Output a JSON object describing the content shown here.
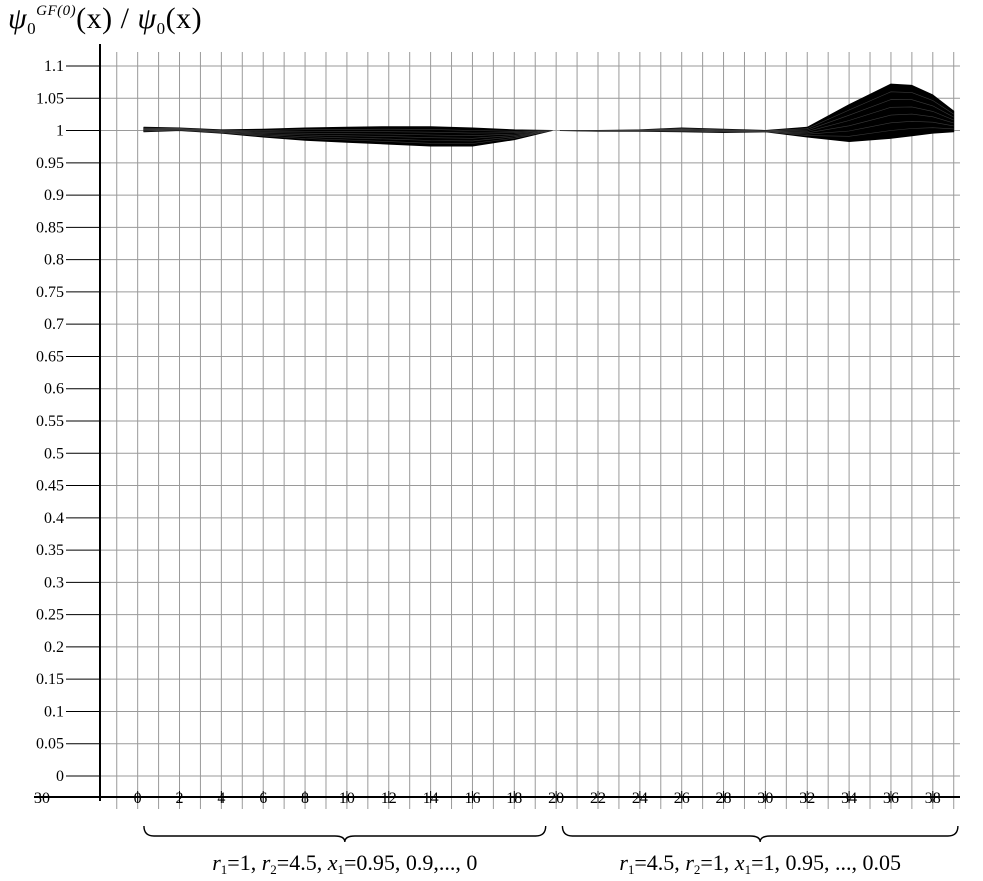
{
  "chart_data": {
    "type": "area",
    "ylabel": {
      "psi": "ψ",
      "psi_sub": "0",
      "sup": "GF(0)",
      "arg": "(x)",
      "slash": " / ",
      "arg2": "(x)"
    },
    "xlabel": "",
    "xlim": [
      -1.8,
      39.3
    ],
    "ylim": [
      0,
      1.15
    ],
    "x_ticks": [
      0,
      2,
      4,
      6,
      8,
      10,
      12,
      14,
      16,
      18,
      20,
      22,
      24,
      26,
      28,
      30,
      32,
      34,
      36,
      38
    ],
    "y_ticks": [
      "0",
      "0.05",
      "0.1",
      "0.15",
      "0.2",
      "0.25",
      "0.3",
      "0.35",
      "0.4",
      "0.45",
      "0.5",
      "0.55",
      "0.6",
      "0.65",
      "0.7",
      "0.75",
      "0.8",
      "0.85",
      "0.9",
      "0.95",
      "1",
      "1.05",
      "1.1"
    ],
    "y_tick_values": [
      0,
      0.05,
      0.1,
      0.15,
      0.2,
      0.25,
      0.3,
      0.35,
      0.4,
      0.45,
      0.5,
      0.55,
      0.6,
      0.65,
      0.7,
      0.75,
      0.8,
      0.85,
      0.9,
      0.95,
      1,
      1.05,
      1.1
    ],
    "overlap_label": "30",
    "grid": true,
    "band_color": "#000000",
    "series": [
      {
        "x": [
          0.3,
          2,
          4,
          6,
          8,
          10,
          12,
          14,
          16,
          18,
          19.8
        ],
        "upper": [
          1.005,
          1.004,
          1.001,
          1.002,
          1.004,
          1.005,
          1.006,
          1.006,
          1.004,
          1.001,
          1.0
        ],
        "lower": [
          0.998,
          1.0,
          0.996,
          0.99,
          0.985,
          0.982,
          0.979,
          0.976,
          0.976,
          0.986,
          1.0
        ]
      },
      {
        "x": [
          20.2,
          22,
          24,
          26,
          28,
          30,
          32,
          34,
          36,
          37,
          38,
          39
        ],
        "upper": [
          1.0,
          1.0,
          1.001,
          1.004,
          1.002,
          1.0,
          1.005,
          1.04,
          1.072,
          1.07,
          1.055,
          1.03
        ],
        "lower": [
          1.0,
          0.999,
          0.999,
          0.998,
          0.997,
          0.998,
          0.99,
          0.983,
          0.988,
          0.992,
          0.996,
          0.998
        ]
      }
    ],
    "groups": [
      {
        "x_start": 0.3,
        "x_end": 19.5,
        "label": {
          "r1": "r",
          "r1_sub": "1",
          "r1_val": "=1, ",
          "r2": "r",
          "r2_sub": "2",
          "r2_val": "=4.5, ",
          "x1": "x",
          "x1_sub": "1",
          "x1_val": "=0.95, 0.9,..., 0"
        }
      },
      {
        "x_start": 20.3,
        "x_end": 39.2,
        "label": {
          "r1": "r",
          "r1_sub": "1",
          "r1_val": "=4.5, ",
          "r2": "r",
          "r2_sub": "2",
          "r2_val": "=1, ",
          "x1": "x",
          "x1_sub": "1",
          "x1_val": "=1, 0.95, ..., 0.05"
        }
      }
    ]
  }
}
